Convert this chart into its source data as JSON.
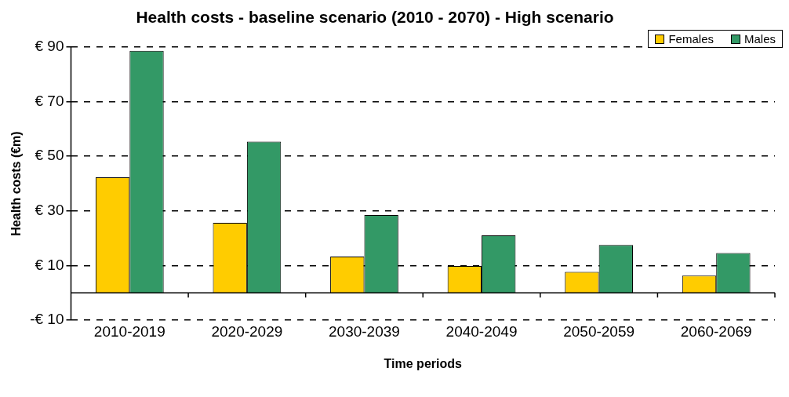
{
  "chart_data": {
    "type": "bar",
    "title": "Health costs - baseline scenario (2010 - 2070) - High scenario",
    "xlabel": "Time periods",
    "ylabel": "Health costs (€m)",
    "categories": [
      "2010-2019",
      "2020-2029",
      "2030-2039",
      "2040-2049",
      "2050-2059",
      "2060-2069"
    ],
    "series": [
      {
        "name": "Females",
        "color": "#ffcc00",
        "values": [
          42.3,
          25.6,
          13.3,
          9.8,
          7.7,
          6.3
        ]
      },
      {
        "name": "Males",
        "color": "#339966",
        "values": [
          88.6,
          55.4,
          28.5,
          21,
          17.5,
          14.6
        ]
      }
    ],
    "ylim": [
      -10,
      90
    ],
    "yticks": [
      {
        "value": -10,
        "label": "-€ 10"
      },
      {
        "value": 10,
        "label": "€ 10"
      },
      {
        "value": 30,
        "label": "€ 30"
      },
      {
        "value": 50,
        "label": "€ 50"
      },
      {
        "value": 70,
        "label": "€ 70"
      },
      {
        "value": 90,
        "label": "€ 90"
      }
    ],
    "grid": "y",
    "legend": "top right"
  }
}
